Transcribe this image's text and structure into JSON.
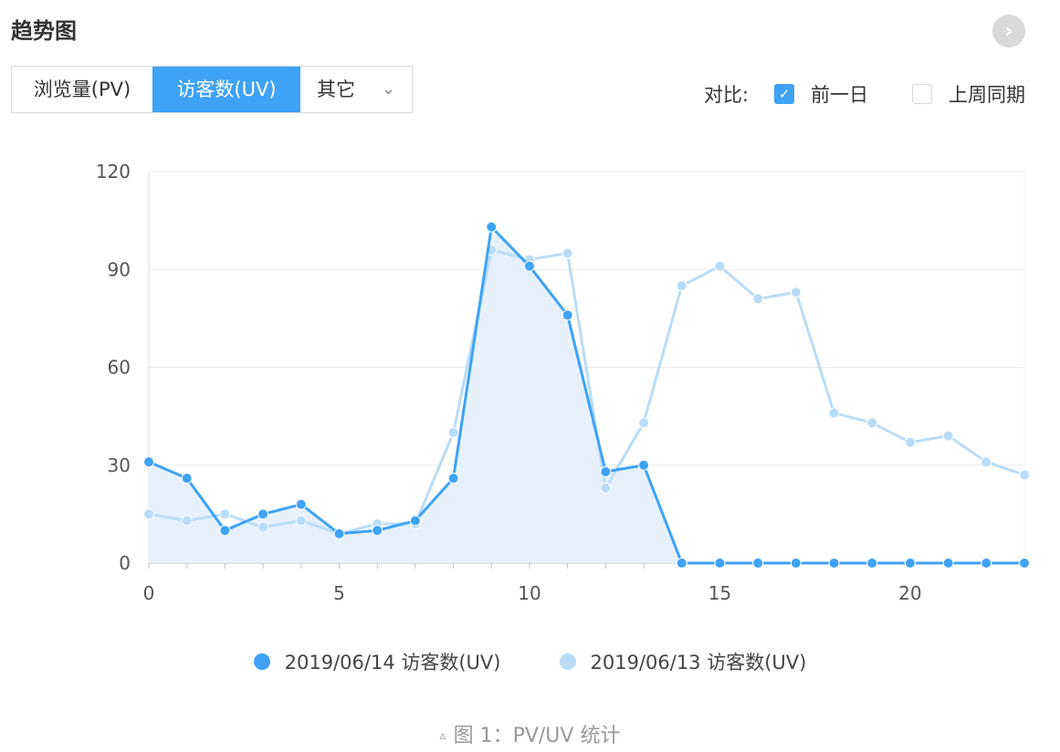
{
  "header": {
    "title": "趋势图"
  },
  "tabs": [
    {
      "label": "浏览量(PV)"
    },
    {
      "label": "访客数(UV)"
    },
    {
      "label": "其它"
    }
  ],
  "compare": {
    "label": "对比:",
    "options": [
      {
        "label": "前一日",
        "checked": true
      },
      {
        "label": "上周同期",
        "checked": false
      }
    ]
  },
  "caption": "图 1：PV/UV 统计",
  "chart_data": {
    "type": "line",
    "x": [
      0,
      1,
      2,
      3,
      4,
      5,
      6,
      7,
      8,
      9,
      10,
      11,
      12,
      13,
      14,
      15,
      16,
      17,
      18,
      19,
      20,
      21,
      22,
      23
    ],
    "xticks": [
      0,
      5,
      10,
      15,
      20
    ],
    "yticks": [
      0,
      30,
      60,
      90,
      120
    ],
    "xlim": [
      0,
      23
    ],
    "ylim": [
      0,
      120
    ],
    "grid": true,
    "legend_position": "bottom",
    "series": [
      {
        "name": "2019/06/14 访客数(UV)",
        "color": "#3ea2f5",
        "fill": true,
        "values": [
          31,
          26,
          10,
          15,
          18,
          9,
          10,
          13,
          26,
          103,
          91,
          76,
          28,
          30,
          0,
          0,
          0,
          0,
          0,
          0,
          0,
          0,
          0,
          0
        ]
      },
      {
        "name": "2019/06/13 访客数(UV)",
        "color": "#b9dcf8",
        "fill": false,
        "values": [
          15,
          13,
          15,
          11,
          13,
          9,
          12,
          12,
          40,
          96,
          93,
          95,
          23,
          43,
          85,
          91,
          81,
          83,
          46,
          43,
          37,
          39,
          31,
          27
        ]
      }
    ]
  }
}
